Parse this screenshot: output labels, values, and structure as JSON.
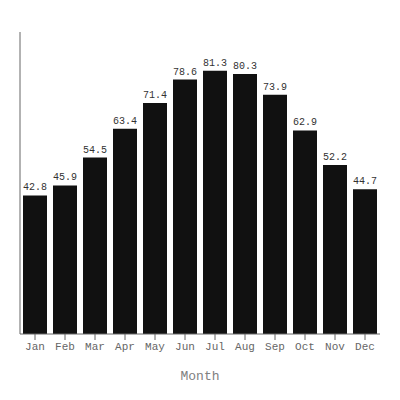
{
  "chart_data": {
    "type": "bar",
    "xlabel": "Month",
    "categories": [
      "Jan",
      "Feb",
      "Mar",
      "Apr",
      "May",
      "Jun",
      "Jul",
      "Aug",
      "Sep",
      "Oct",
      "Nov",
      "Dec"
    ],
    "values": [
      42.8,
      45.9,
      54.5,
      63.4,
      71.4,
      78.6,
      81.3,
      80.3,
      73.9,
      62.9,
      52.2,
      44.7
    ],
    "color": "#111111",
    "ylim": [
      0,
      93.3
    ],
    "data_labels": true,
    "tick_labels": "x",
    "grid": false
  }
}
